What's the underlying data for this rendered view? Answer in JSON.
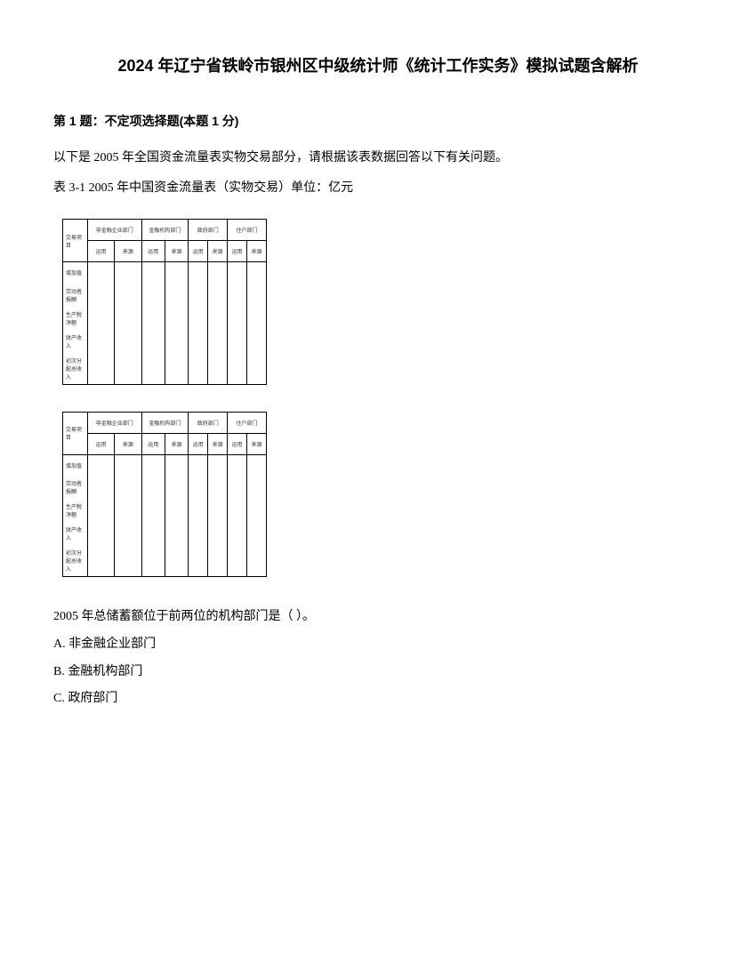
{
  "title": "2024 年辽宁省铁岭市银州区中级统计师《统计工作实务》模拟试题含解析",
  "question_header": "第 1 题：不定项选择题(本题 1 分)",
  "question_text": "以下是 2005 年全国资金流量表实物交易部分，请根据该表数据回答以下有关问题。",
  "table_caption": "表 3-1  2005 年中国资金流量表（实物交易）单位：亿元",
  "table": {
    "header_groups": [
      "非金融企业部门",
      "金融机构部门",
      "政府部门",
      "住户部门"
    ],
    "sub_headers": [
      "交易项目",
      "运用",
      "来源",
      "运用",
      "来源",
      "运用",
      "来源",
      "运用",
      "来源"
    ],
    "rows": [
      {
        "label": "增加值",
        "cells": [
          "",
          "",
          "",
          "",
          "",
          "",
          "",
          ""
        ]
      },
      {
        "label": "劳动者报酬",
        "cells": [
          "",
          "",
          "",
          "",
          "",
          "",
          "",
          ""
        ]
      },
      {
        "label": "生产税净额",
        "cells": [
          "",
          "",
          "",
          "",
          "",
          "",
          "",
          ""
        ]
      },
      {
        "label": "财产收入",
        "cells": [
          "",
          "",
          "",
          "",
          "",
          "",
          "",
          ""
        ]
      },
      {
        "label": "初次分配总收入",
        "cells": [
          "",
          "",
          "",
          "",
          "",
          "",
          "",
          ""
        ]
      }
    ]
  },
  "question_prompt": "2005 年总储蓄额位于前两位的机构部门是（ ）。",
  "options": {
    "A": "A. 非金融企业部门",
    "B": "B. 金融机构部门",
    "C": "C. 政府部门"
  },
  "styles": {
    "background_color": "#ffffff",
    "text_color": "#000000",
    "title_fontsize": 18,
    "body_fontsize": 14,
    "table_fontsize": 6,
    "border_color": "#000000"
  }
}
